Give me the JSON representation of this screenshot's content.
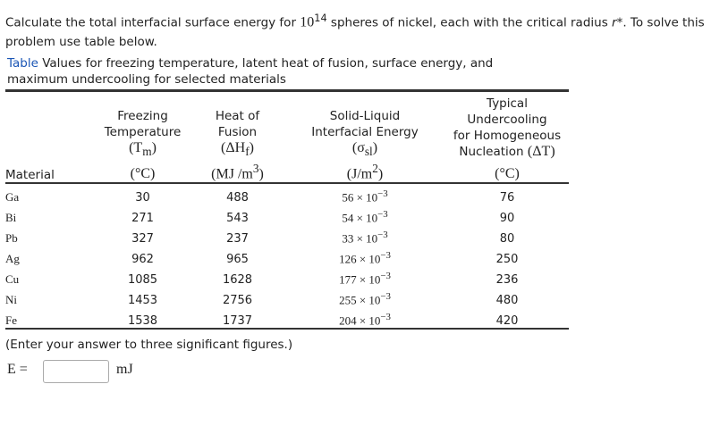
{
  "question": {
    "text_before": "Calculate the total interfacial surface energy for ",
    "power_base": "10",
    "power_exponent": "14",
    "text_middle": " spheres of nickel, each with the critical radius ",
    "symbol": "r*",
    "text_after": ". To solve this problem use table below."
  },
  "table": {
    "caption_label": "Table",
    "caption_text": " Values for freezing temperature, latent heat of fusion, surface energy, and maximum undercooling for selected materials",
    "columns": [
      {
        "heading": "Material"
      },
      {
        "title": [
          "Freezing",
          "Temperature"
        ],
        "symbol": [
          "(T",
          {
            "sub": "m"
          },
          ")"
        ],
        "unit": [
          "(°C)"
        ]
      },
      {
        "title": [
          "Heat of",
          "Fusion"
        ],
        "symbol": [
          "(ΔH",
          {
            "sub": "f"
          },
          ")"
        ],
        "unit": [
          "(MJ /m",
          {
            "sup": "3"
          },
          ")"
        ]
      },
      {
        "title": [
          "Solid-Liquid",
          "Interfacial Energy"
        ],
        "symbol": [
          "(σ",
          {
            "sub": "sl"
          },
          ")"
        ],
        "unit": [
          "(J/m",
          {
            "sup": "2"
          },
          ")"
        ]
      },
      {
        "title": [
          "Typical",
          "Undercooling",
          "for Homogeneous",
          "Nucleation"
        ],
        "symbol": [
          "(ΔT)"
        ],
        "symbol_inline": true,
        "unit": [
          "(°C)"
        ]
      }
    ],
    "rows": [
      [
        "Ga",
        30,
        488,
        [
          "56 × 10",
          {
            "sup": "−3"
          }
        ],
        76
      ],
      [
        "Bi",
        271,
        543,
        [
          "54 × 10",
          {
            "sup": "−3"
          }
        ],
        90
      ],
      [
        "Pb",
        327,
        237,
        [
          "33 × 10",
          {
            "sup": "−3"
          }
        ],
        80
      ],
      [
        "Ag",
        962,
        965,
        [
          "126 × 10",
          {
            "sup": "−3"
          }
        ],
        250
      ],
      [
        "Cu",
        1085,
        1628,
        [
          "177 × 10",
          {
            "sup": "−3"
          }
        ],
        236
      ],
      [
        "Ni",
        1453,
        2756,
        [
          "255 × 10",
          {
            "sup": "−3"
          }
        ],
        480
      ],
      [
        "Fe",
        1538,
        1737,
        [
          "204 × 10",
          {
            "sup": "−3"
          }
        ],
        420
      ]
    ]
  },
  "instruction": "(Enter your answer to three significant figures.)",
  "answer": {
    "label": "E =",
    "unit": "mJ"
  }
}
